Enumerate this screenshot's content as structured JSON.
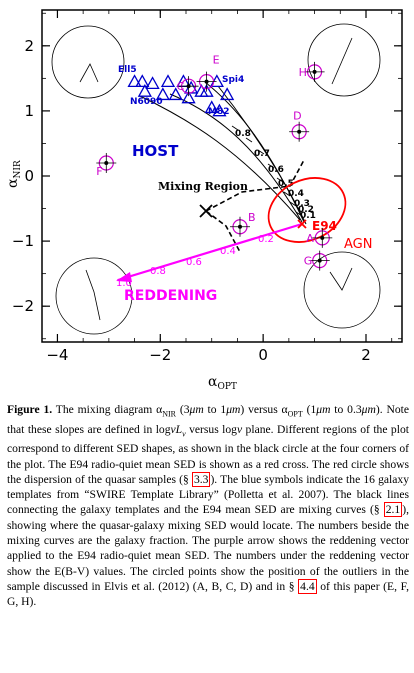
{
  "chart_data": {
    "type": "scatter",
    "xlabel": "α_OPT",
    "ylabel": "α_NIR",
    "xlim": [
      -4.3,
      2.7
    ],
    "ylim": [
      -2.55,
      2.55
    ],
    "xticks": [
      "−4",
      "−2",
      "0",
      "2"
    ],
    "yticks": [
      "2",
      "1",
      "0",
      "−1",
      "−2"
    ],
    "xtick_values": [
      -4,
      -2,
      0,
      2
    ],
    "ytick_values": [
      2,
      1,
      0,
      -1,
      -2
    ],
    "region_labels": {
      "host": "HOST",
      "mixing": "Mixing Region",
      "agn": "AGN",
      "reddening": "REDDENING"
    },
    "galaxy_templates": [
      {
        "label": "Ell5",
        "x": -2.5,
        "y": 1.45
      },
      {
        "label": "",
        "x": -2.35,
        "y": 1.45
      },
      {
        "label": "",
        "x": -2.15,
        "y": 1.42
      },
      {
        "label": "",
        "x": -2.3,
        "y": 1.3
      },
      {
        "label": "",
        "x": -1.85,
        "y": 1.45
      },
      {
        "label": "",
        "x": -1.55,
        "y": 1.45
      },
      {
        "label": "N6090",
        "x": -1.95,
        "y": 1.25
      },
      {
        "label": "",
        "x": -1.7,
        "y": 1.25
      },
      {
        "label": "",
        "x": -1.4,
        "y": 1.35
      },
      {
        "label": "",
        "x": -1.2,
        "y": 1.3
      },
      {
        "label": "",
        "x": -1.45,
        "y": 1.2
      },
      {
        "label": "",
        "x": -1.1,
        "y": 1.3
      },
      {
        "label": "",
        "x": -0.9,
        "y": 1.45
      },
      {
        "label": "Spi4",
        "x": -0.7,
        "y": 1.25
      },
      {
        "label": "",
        "x": -1.0,
        "y": 1.05
      },
      {
        "label": "M82",
        "x": -0.85,
        "y": 1.0
      }
    ],
    "e94_mean_sed": {
      "label": "E94",
      "x": 0.9,
      "y": -0.7
    },
    "mixing_fraction_labels": [
      "0.8",
      "0.7",
      "0.6",
      "0.5",
      "0.4",
      "0.3",
      "0.2",
      "0.1"
    ],
    "reddening_ebv_labels": [
      "0.2",
      "0.4",
      "0.6",
      "0.8",
      "1.0"
    ],
    "outliers": [
      {
        "label": "A",
        "x": 1.15,
        "y": -0.95
      },
      {
        "label": "B",
        "x": -0.45,
        "y": -0.78
      },
      {
        "label": "C",
        "x": -1.45,
        "y": 1.38
      },
      {
        "label": "D",
        "x": 0.7,
        "y": 0.68
      },
      {
        "label": "E",
        "x": -1.1,
        "y": 1.45
      },
      {
        "label": "F",
        "x": -3.05,
        "y": 0.2
      },
      {
        "label": "G",
        "x": 1.1,
        "y": -1.3
      },
      {
        "label": "H",
        "x": 1.0,
        "y": 1.6
      }
    ]
  },
  "caption": {
    "figure_label": "Figure 1.",
    "line1": "The mixing diagram α",
    "line1_full": "The mixing diagram αNIR (3μm to 1μm) versus αOPT (1μm to 0.3μm). Note that these slopes are defined in logνLν versus logν plane. Different regions of the plot correspond to different SED shapes, as shown in the black circle at the four corners of the plot. The E94 radio-quiet mean SED is shown as a red cross. The red circle shows the dispersion of the quasar samples (§ 3.3). The blue symbols indicate the 16 galaxy templates from “SWIRE Template Library” (Polletta et al. 2007). The black lines connecting the galaxy templates and the E94 mean SED are mixing curves (§ 2.1), showing where the quasar-galaxy mixing SED would locate. The numbers beside the mixing curves are the galaxy fraction. The purple arrow shows the reddening vector applied to the E94 radio-quiet mean SED. The numbers under the reddening vector show the E(B-V) values. The circled points show the position of the outliers in the sample discussed in Elvis et al. (2012) (A, B, C, D) and in § 4.4 of this paper (E, F, G, H).",
    "ref1": "3.3",
    "ref2": "2.1",
    "ref3": "4.4"
  },
  "colors": {
    "axis": "#000000",
    "galaxy": "#0000cc",
    "agn": "#ff0000",
    "reddening": "#ff00ff",
    "outlier": "#cc00cc"
  }
}
